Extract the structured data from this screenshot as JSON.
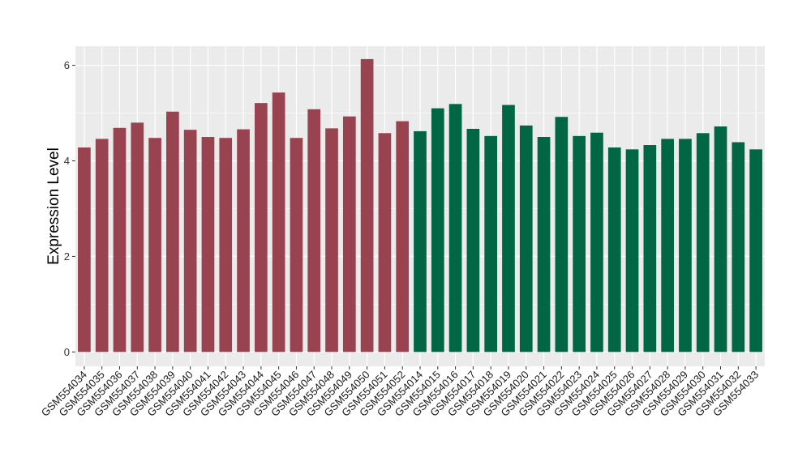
{
  "chart_data": {
    "type": "bar",
    "title": "",
    "xlabel": "",
    "ylabel": "Expression Level",
    "ylim": [
      -0.3,
      6.4
    ],
    "yticks": [
      0,
      2,
      4,
      6
    ],
    "grid": true,
    "legend": "none",
    "categories": [
      "GSM554034",
      "GSM554035",
      "GSM554036",
      "GSM554037",
      "GSM554038",
      "GSM554039",
      "GSM554040",
      "GSM554041",
      "GSM554042",
      "GSM554043",
      "GSM554044",
      "GSM554045",
      "GSM554046",
      "GSM554047",
      "GSM554048",
      "GSM554049",
      "GSM554050",
      "GSM554051",
      "GSM554052",
      "GSM554014",
      "GSM554015",
      "GSM554016",
      "GSM554017",
      "GSM554018",
      "GSM554019",
      "GSM554020",
      "GSM554021",
      "GSM554022",
      "GSM554023",
      "GSM554024",
      "GSM554025",
      "GSM554026",
      "GSM554027",
      "GSM554028",
      "GSM554029",
      "GSM554030",
      "GSM554031",
      "GSM554032",
      "GSM554033"
    ],
    "values": [
      4.28,
      4.46,
      4.69,
      4.8,
      4.48,
      5.03,
      4.65,
      4.5,
      4.48,
      4.66,
      5.21,
      5.43,
      4.48,
      5.08,
      4.68,
      4.93,
      6.13,
      4.58,
      4.83,
      4.62,
      5.1,
      5.19,
      4.67,
      4.52,
      5.17,
      4.74,
      4.5,
      4.92,
      4.52,
      4.59,
      4.28,
      4.24,
      4.33,
      4.46,
      4.46,
      4.58,
      4.72,
      4.39,
      4.24
    ],
    "colors": [
      "#9a4350",
      "#9a4350",
      "#9a4350",
      "#9a4350",
      "#9a4350",
      "#9a4350",
      "#9a4350",
      "#9a4350",
      "#9a4350",
      "#9a4350",
      "#9a4350",
      "#9a4350",
      "#9a4350",
      "#9a4350",
      "#9a4350",
      "#9a4350",
      "#9a4350",
      "#9a4350",
      "#9a4350",
      "#006644",
      "#006644",
      "#006644",
      "#006644",
      "#006644",
      "#006644",
      "#006644",
      "#006644",
      "#006644",
      "#006644",
      "#006644",
      "#006644",
      "#006644",
      "#006644",
      "#006644",
      "#006644",
      "#006644",
      "#006644",
      "#006644",
      "#006644"
    ],
    "panel_background": "#ebebeb",
    "grid_color": "#ffffff"
  }
}
